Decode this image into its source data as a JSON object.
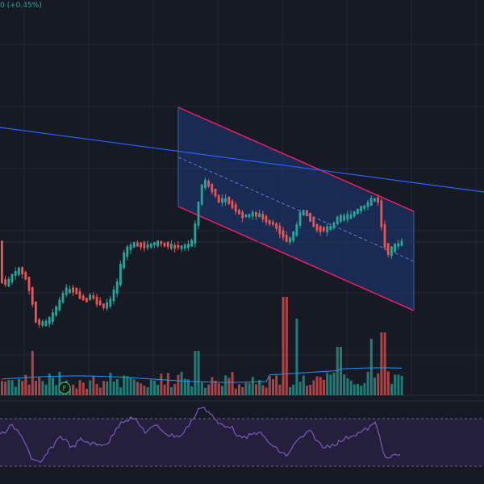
{
  "header": {
    "change_text": "0 (+0.45%)"
  },
  "colors": {
    "background": "#161a25",
    "grid": "#222836",
    "up": "#26a69a",
    "down": "#ef5350",
    "channel_border": "#e91e63",
    "channel_fill": "#1e3a78",
    "trendline": "#2962ff",
    "rsi_line": "#7e57c2",
    "rsi_band": "#241f3a",
    "volume_ma": "#2196f3",
    "badge": "#4caf50"
  },
  "indicators": {
    "financials_badge": "F",
    "rsi_panel": true,
    "volume_panel": true
  },
  "drawings": {
    "regression_channel": true,
    "trendline": true
  }
}
